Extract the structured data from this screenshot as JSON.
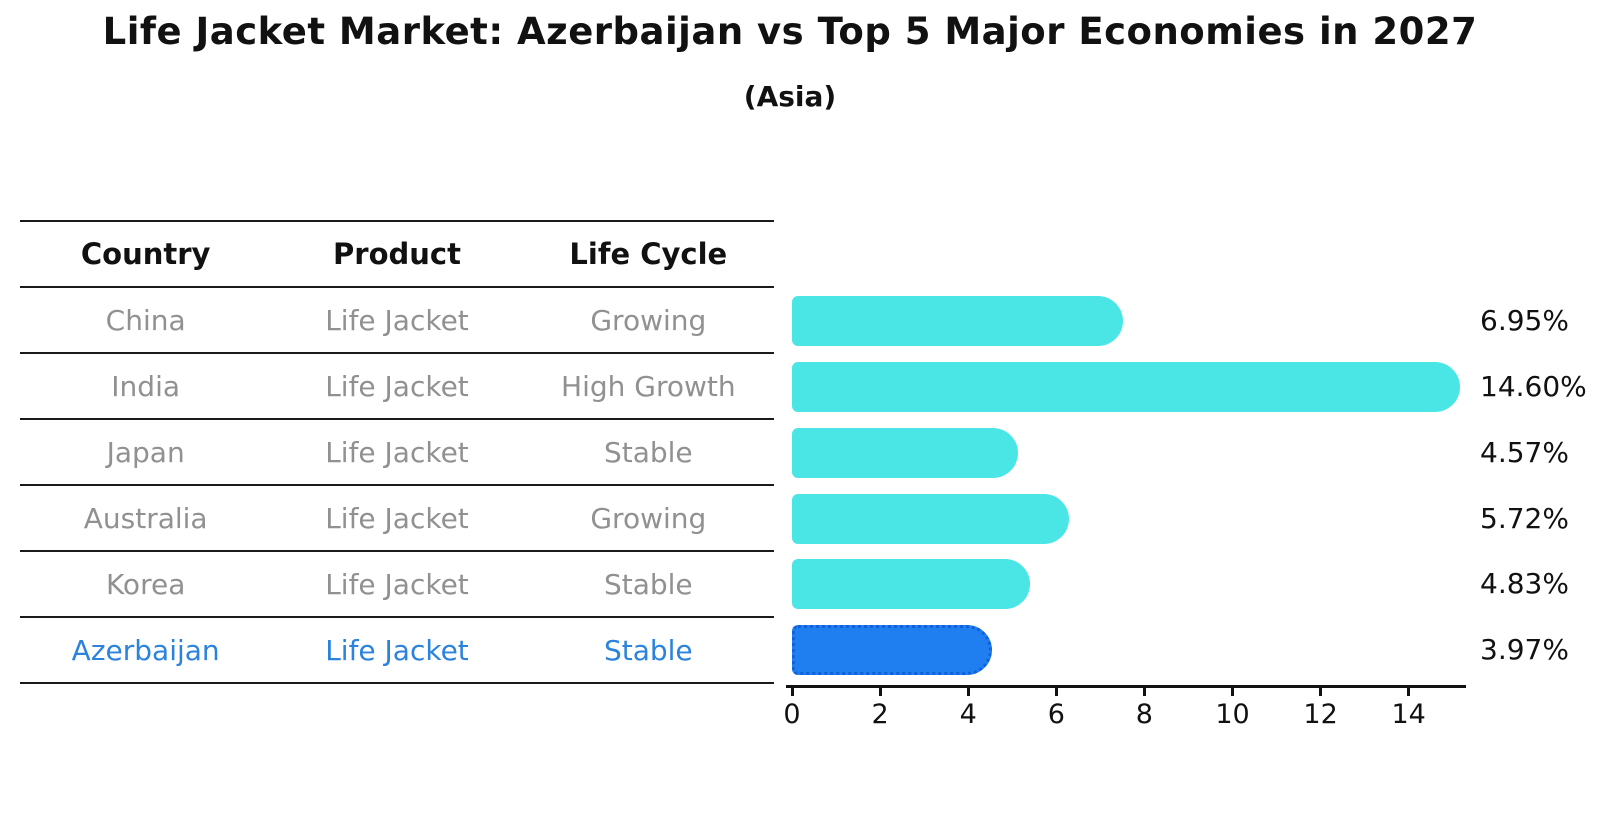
{
  "title": "Life Jacket Market: Azerbaijan vs Top 5 Major Economies in 2027",
  "subtitle": "(Asia)",
  "table": {
    "headers": [
      "Country",
      "Product",
      "Life Cycle"
    ],
    "rows": [
      {
        "country": "China",
        "product": "Life Jacket",
        "life_cycle": "Growing",
        "highlight": false
      },
      {
        "country": "India",
        "product": "Life Jacket",
        "life_cycle": "High Growth",
        "highlight": false
      },
      {
        "country": "Japan",
        "product": "Life Jacket",
        "life_cycle": "Stable",
        "highlight": false
      },
      {
        "country": "Australia",
        "product": "Life Jacket",
        "life_cycle": "Growing",
        "highlight": false
      },
      {
        "country": "Korea",
        "product": "Life Jacket",
        "life_cycle": "Stable",
        "highlight": false
      },
      {
        "country": "Azerbaijan",
        "product": "Life Jacket",
        "life_cycle": "Stable",
        "highlight": true
      }
    ]
  },
  "chart_data": {
    "type": "bar",
    "orientation": "horizontal",
    "title": "Life Jacket Market: Azerbaijan vs Top 5 Major Economies in 2027 (Asia)",
    "categories": [
      "China",
      "India",
      "Japan",
      "Australia",
      "Korea",
      "Azerbaijan"
    ],
    "values": [
      6.95,
      14.6,
      4.57,
      5.72,
      4.83,
      3.97
    ],
    "value_labels": [
      "6.95%",
      "14.60%",
      "4.57%",
      "5.72%",
      "4.83%",
      "3.97%"
    ],
    "highlight_index": 5,
    "x_ticks": [
      0,
      2,
      4,
      6,
      8,
      10,
      12,
      14
    ],
    "xlim": [
      0,
      15.3
    ],
    "xlabel": "",
    "ylabel": "",
    "grid": false,
    "legend": false,
    "bar_color": "#4AE5E5",
    "highlight_bar_color": "#1F7EF0",
    "highlight_bar_border_color": "#0F62D9",
    "highlight_text_color": "#2B83DC",
    "row_text_color": "#919191",
    "axis_color": "#111111"
  }
}
